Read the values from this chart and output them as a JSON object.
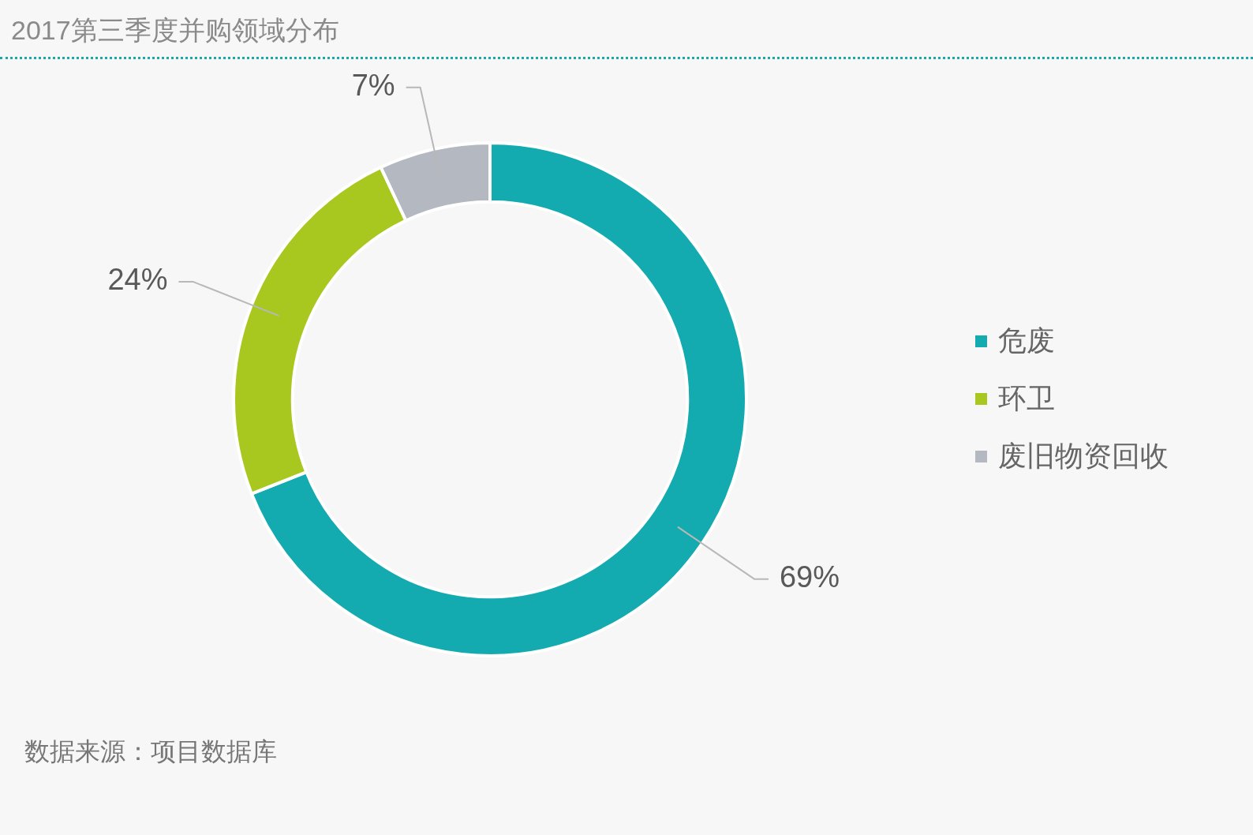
{
  "chart_data": {
    "type": "donut",
    "title": "2017第三季度并购领域分布",
    "categories": [
      "危废",
      "环卫",
      "废旧物资回收"
    ],
    "values": [
      69,
      24,
      7
    ],
    "colors": [
      "#14abb0",
      "#a8c81f",
      "#b3b8c1"
    ],
    "value_labels": [
      "69%",
      "24%",
      "7%"
    ],
    "legend": "right",
    "annotations": [
      "数据来源：项目数据库"
    ]
  }
}
